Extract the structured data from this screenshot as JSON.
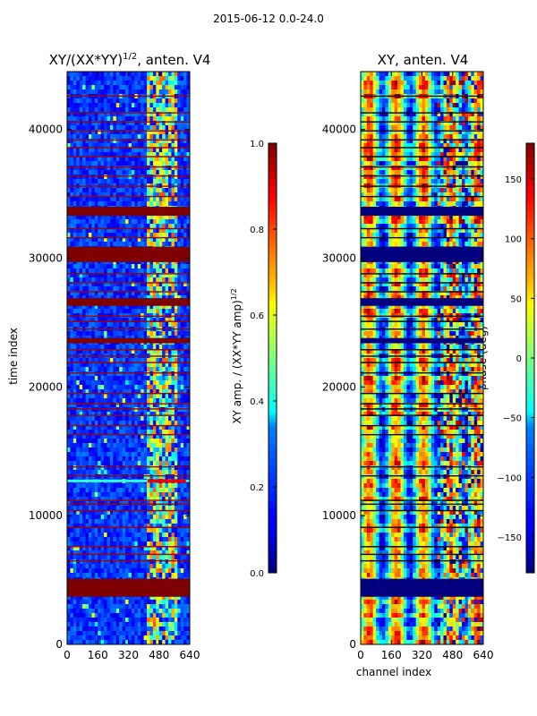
{
  "figure": {
    "suptitle": "2015-06-12 0.0-24.0",
    "ylabel": "time index",
    "xlabel": "channel index"
  },
  "chart_data": [
    {
      "type": "heatmap",
      "title": "XY/(XX*YY)",
      "title_sup": "1/2",
      "title_suffix": ", anten. V4",
      "x_ticks": [
        "0",
        "160",
        "320",
        "480",
        "640"
      ],
      "x_tick_values": [
        0,
        160,
        320,
        480,
        640
      ],
      "y_ticks": [
        "0",
        "10000",
        "20000",
        "30000",
        "40000"
      ],
      "y_tick_values": [
        0,
        10000,
        20000,
        30000,
        40000
      ],
      "xlim": [
        0,
        640
      ],
      "ylim": [
        0,
        44500
      ],
      "colormap": "jet",
      "colorbar": {
        "label": "XY amp. / (XX*YY amp)",
        "label_sup": "1/2",
        "ticks": [
          "0.0",
          "0.2",
          "0.4",
          "0.6",
          "0.8",
          "1.0"
        ],
        "tick_values": [
          0.0,
          0.2,
          0.4,
          0.6,
          0.8,
          1.0
        ],
        "range": [
          0.0,
          1.0
        ]
      },
      "flagged_bands": [
        [
          3700,
          5100
        ],
        [
          23400,
          23800
        ],
        [
          26300,
          26900
        ],
        [
          29700,
          30900
        ],
        [
          33300,
          34000
        ]
      ],
      "thin_flag_rows": [
        6500,
        7000,
        7600,
        9100,
        10400,
        10900,
        11200,
        13100,
        13800,
        16300,
        17000,
        17800,
        18300,
        18700,
        19500,
        21100,
        21900,
        22400,
        22900,
        24500,
        25100,
        25500,
        27400,
        28100,
        28800,
        31600,
        32300,
        34800,
        35600,
        36400,
        37100,
        37900,
        38600,
        39200,
        39900,
        40600,
        41300,
        42600
      ],
      "hot_line_y": 12700
    },
    {
      "type": "heatmap",
      "title": "XY, anten. V4",
      "x_ticks": [
        "0",
        "160",
        "320",
        "480",
        "640"
      ],
      "x_tick_values": [
        0,
        160,
        320,
        480,
        640
      ],
      "y_ticks": [
        "0",
        "10000",
        "20000",
        "30000",
        "40000"
      ],
      "y_tick_values": [
        0,
        10000,
        20000,
        30000,
        40000
      ],
      "xlim": [
        0,
        640
      ],
      "ylim": [
        0,
        44500
      ],
      "colormap": "jet",
      "colorbar": {
        "label": "phase (deg)",
        "ticks": [
          "−150",
          "−100",
          "−50",
          "0",
          "50",
          "100",
          "150"
        ],
        "tick_values": [
          -150,
          -100,
          -50,
          0,
          50,
          100,
          150
        ],
        "range": [
          -180,
          180
        ]
      },
      "flagged_bands": [
        [
          3700,
          5100
        ],
        [
          23400,
          23800
        ],
        [
          26300,
          26900
        ],
        [
          29700,
          30900
        ],
        [
          33300,
          34000
        ]
      ],
      "thin_flag_rows": [
        6500,
        7000,
        7600,
        9100,
        10400,
        10900,
        11200,
        13100,
        13800,
        16300,
        17000,
        17800,
        18300,
        18700,
        19500,
        21100,
        21900,
        22400,
        22900,
        24500,
        25100,
        25500,
        27400,
        28100,
        28800,
        31600,
        32300,
        34800,
        35600,
        36400,
        37100,
        37900,
        38600,
        39200,
        39900,
        40600,
        41300,
        42600
      ]
    }
  ]
}
